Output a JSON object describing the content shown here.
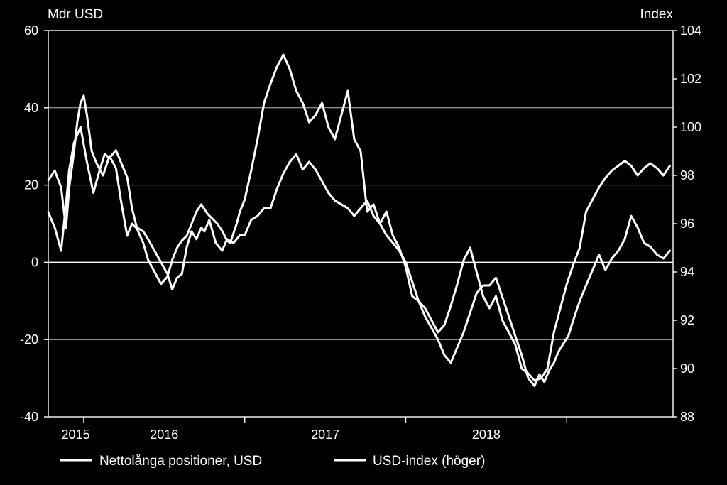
{
  "chart_data": {
    "type": "line",
    "title": "",
    "y_left": {
      "label": "Mdr USD",
      "min": -40,
      "max": 60,
      "ticks": [
        -40,
        -20,
        0,
        20,
        40,
        60
      ]
    },
    "y_right": {
      "label": "Index",
      "min": 88,
      "max": 104,
      "ticks": [
        88,
        90,
        92,
        94,
        96,
        98,
        100,
        102,
        104
      ]
    },
    "x_axis": {
      "start": 2014.78,
      "end": 2018.66,
      "year_boundaries": [
        2015.0,
        2016.0,
        2017.0,
        2018.0
      ],
      "labels": [
        {
          "text": "2015",
          "at": 2014.95
        },
        {
          "text": "2016",
          "at": 2015.5
        },
        {
          "text": "2017",
          "at": 2016.5
        },
        {
          "text": "2018",
          "at": 2017.5
        }
      ]
    },
    "grid": {
      "horizontal": true,
      "zero_line": true
    },
    "legend": {
      "placement": "bottom-left"
    },
    "colors": {
      "background": "#000000",
      "line": "#ffffff",
      "grid": "#bdbdbd"
    },
    "series": [
      {
        "name": "Nettolånga positioner, USD",
        "axis": "left",
        "x": [
          2014.78,
          2014.82,
          2014.86,
          2014.89,
          2014.91,
          2014.94,
          2014.98,
          2015.02,
          2015.06,
          2015.1,
          2015.13,
          2015.16,
          2015.2,
          2015.23,
          2015.27,
          2015.3,
          2015.33,
          2015.37,
          2015.4,
          2015.44,
          2015.48,
          2015.52,
          2015.55,
          2015.58,
          2015.61,
          2015.64,
          2015.67,
          2015.7,
          2015.73,
          2015.75,
          2015.78,
          2015.82,
          2015.86,
          2015.89,
          2015.93,
          2015.97,
          2016.0,
          2016.04,
          2016.08,
          2016.12,
          2016.16,
          2016.2,
          2016.24,
          2016.28,
          2016.32,
          2016.36,
          2016.4,
          2016.44,
          2016.48,
          2016.52,
          2016.56,
          2016.6,
          2016.64,
          2016.68,
          2016.72,
          2016.76,
          2016.8,
          2016.84,
          2016.88,
          2016.92,
          2016.96,
          2017.0,
          2017.04,
          2017.08,
          2017.12,
          2017.16,
          2017.2,
          2017.24,
          2017.28,
          2017.32,
          2017.36,
          2017.4,
          2017.44,
          2017.48,
          2017.52,
          2017.56,
          2017.6,
          2017.64,
          2017.68,
          2017.72,
          2017.76,
          2017.8,
          2017.83,
          2017.86,
          2017.89,
          2017.92,
          2017.95,
          2017.98,
          2018.01,
          2018.04,
          2018.08,
          2018.12,
          2018.16,
          2018.2,
          2018.24,
          2018.28,
          2018.32,
          2018.36,
          2018.4,
          2018.44,
          2018.48,
          2018.52,
          2018.56,
          2018.6,
          2018.64
        ],
        "values": [
          13,
          9,
          3,
          15,
          24,
          31,
          35,
          26,
          18,
          24,
          28,
          27,
          29,
          26,
          22,
          14,
          9,
          8,
          6,
          3,
          0,
          -3,
          -7,
          -4,
          -3,
          4,
          8,
          6,
          9,
          8,
          11,
          5,
          3,
          6,
          5,
          7,
          7,
          11,
          12,
          14,
          14,
          19,
          23,
          26,
          28,
          24,
          26,
          24,
          21,
          18,
          16,
          15,
          14,
          12,
          14,
          16,
          12,
          10,
          7,
          5,
          3,
          0,
          -5,
          -10,
          -14,
          -17,
          -20,
          -24,
          -26,
          -22,
          -18,
          -13,
          -8,
          -6,
          -6,
          -4,
          -9,
          -14,
          -19,
          -24,
          -30,
          -32,
          -29,
          -31,
          -28,
          -26,
          -23,
          -21,
          -19,
          -15,
          -10,
          -6,
          -2,
          2,
          -2,
          1,
          3,
          6,
          12,
          9,
          5,
          4,
          2,
          1,
          3
        ],
        "color": "#ffffff"
      },
      {
        "name": "USD-index (höger)",
        "axis": "right",
        "x": [
          2014.78,
          2014.82,
          2014.86,
          2014.89,
          2014.91,
          2014.94,
          2014.96,
          2014.98,
          2015.0,
          2015.02,
          2015.05,
          2015.08,
          2015.12,
          2015.16,
          2015.2,
          2015.23,
          2015.27,
          2015.3,
          2015.33,
          2015.37,
          2015.4,
          2015.44,
          2015.48,
          2015.52,
          2015.55,
          2015.58,
          2015.61,
          2015.64,
          2015.67,
          2015.7,
          2015.73,
          2015.77,
          2015.8,
          2015.83,
          2015.86,
          2015.89,
          2015.91,
          2015.93,
          2015.95,
          2015.97,
          2016.0,
          2016.04,
          2016.08,
          2016.12,
          2016.16,
          2016.2,
          2016.24,
          2016.28,
          2016.32,
          2016.36,
          2016.4,
          2016.44,
          2016.48,
          2016.52,
          2016.56,
          2016.6,
          2016.64,
          2016.68,
          2016.72,
          2016.76,
          2016.8,
          2016.84,
          2016.88,
          2016.92,
          2016.96,
          2017.0,
          2017.04,
          2017.08,
          2017.12,
          2017.16,
          2017.2,
          2017.24,
          2017.28,
          2017.32,
          2017.36,
          2017.4,
          2017.44,
          2017.48,
          2017.52,
          2017.56,
          2017.6,
          2017.64,
          2017.68,
          2017.72,
          2017.76,
          2017.8,
          2017.84,
          2017.88,
          2017.92,
          2017.96,
          2018.0,
          2018.04,
          2018.08,
          2018.12,
          2018.16,
          2018.2,
          2018.24,
          2018.28,
          2018.32,
          2018.36,
          2018.4,
          2018.44,
          2018.48,
          2018.52,
          2018.56,
          2018.6,
          2018.64
        ],
        "values": [
          97.8,
          98.2,
          97.5,
          95.8,
          97.5,
          99.0,
          100.2,
          101.0,
          101.3,
          100.5,
          99.0,
          98.5,
          98.0,
          98.8,
          98.3,
          97.0,
          95.5,
          96.0,
          95.8,
          95.2,
          94.5,
          94.0,
          93.5,
          93.8,
          94.5,
          95.0,
          95.3,
          95.5,
          96.0,
          96.5,
          96.8,
          96.4,
          96.2,
          96.0,
          95.7,
          95.3,
          95.2,
          95.6,
          96.0,
          96.5,
          97.0,
          98.2,
          99.5,
          101.0,
          101.8,
          102.5,
          103.0,
          102.4,
          101.5,
          101.0,
          100.2,
          100.5,
          101.0,
          100.0,
          99.5,
          100.5,
          101.5,
          99.5,
          99.0,
          96.5,
          96.8,
          96.0,
          96.5,
          95.5,
          95.0,
          94.2,
          93.0,
          92.8,
          92.5,
          92.0,
          91.5,
          91.8,
          92.6,
          93.5,
          94.5,
          95.0,
          94.0,
          93.0,
          92.5,
          93.0,
          92.0,
          91.5,
          91.0,
          90.0,
          89.8,
          89.5,
          89.6,
          90.0,
          91.5,
          92.5,
          93.5,
          94.3,
          95.0,
          96.5,
          97.0,
          97.5,
          97.9,
          98.2,
          98.4,
          98.6,
          98.4,
          98.0,
          98.3,
          98.5,
          98.3,
          98.0,
          98.4
        ],
        "color": "#ffffff"
      }
    ]
  }
}
